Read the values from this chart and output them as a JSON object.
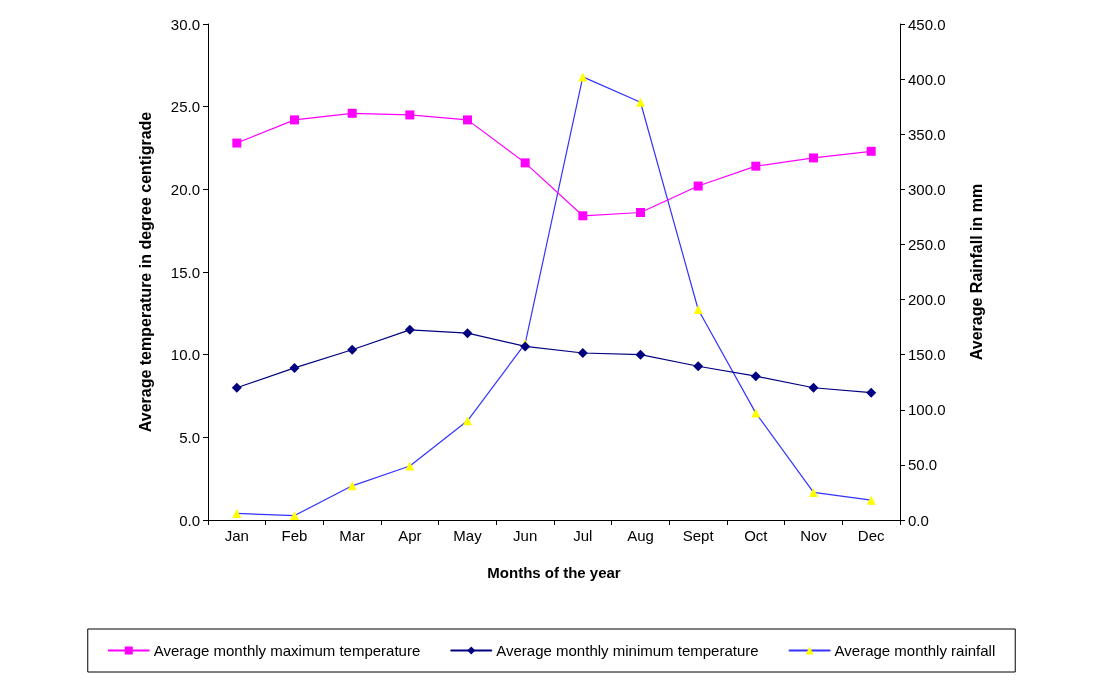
{
  "chart_data": {
    "type": "line",
    "xlabel": "Months of the year",
    "ylabel": "Average temperature in degree centigrade",
    "y2label": "Average Rainfall in mm",
    "categories": [
      "Jan",
      "Feb",
      "Mar",
      "Apr",
      "May",
      "Jun",
      "Jul",
      "Aug",
      "Sept",
      "Oct",
      "Nov",
      "Dec"
    ],
    "series": [
      {
        "name": "Average monthly maximum temperature",
        "color": "#ff00ff",
        "marker": "square",
        "values": [
          22.8,
          24.2,
          24.6,
          24.5,
          24.2,
          21.6,
          18.4,
          18.6,
          20.2,
          21.4,
          21.9,
          22.3
        ]
      },
      {
        "name": "Average monthly minimum temperature",
        "color": "#000080",
        "marker": "diamond",
        "values": [
          8.0,
          9.2,
          10.3,
          11.5,
          11.3,
          10.5,
          10.1,
          10.0,
          9.3,
          8.7,
          8.0,
          7.7
        ]
      },
      {
        "name": "Average monthly rainfall",
        "color": "#3333ff",
        "colors": [
          "#ffff00",
          "#ffff00",
          "#ffff00",
          "#ffff00",
          "#ffff00",
          "#ffff00",
          "#ffff00",
          "#ffff00",
          "#ffff00",
          "#ffff00",
          "#ffff00",
          "#ffff00"
        ],
        "marker": "triangle",
        "axis": "y2",
        "values": [
          6,
          4,
          31,
          49,
          90,
          160,
          402,
          379,
          191,
          97,
          25,
          18
        ]
      }
    ],
    "ylim": [
      0,
      30
    ],
    "yticks": [
      {
        "value": 0,
        "label": "0.0"
      },
      {
        "value": 5,
        "label": "5.0"
      },
      {
        "value": 10,
        "label": "10.0"
      },
      {
        "value": 15,
        "label": "15.0"
      },
      {
        "value": 20,
        "label": "20.0"
      },
      {
        "value": 25,
        "label": "25.0"
      },
      {
        "value": 30,
        "label": "30.0"
      }
    ],
    "y2lim": [
      0,
      450
    ],
    "y2ticks": [
      {
        "value": 0,
        "label": "0.0"
      },
      {
        "value": 50,
        "label": "50.0"
      },
      {
        "value": 100,
        "label": "100.0"
      },
      {
        "value": 150,
        "label": "150.0"
      },
      {
        "value": 200,
        "label": "200.0"
      },
      {
        "value": 250,
        "label": "250.0"
      },
      {
        "value": 300,
        "label": "300.0"
      },
      {
        "value": 350,
        "label": "350.0"
      },
      {
        "value": 400,
        "label": "400.0"
      },
      {
        "value": 450,
        "label": "450.0"
      }
    ],
    "grid": false,
    "legend": "bottom"
  }
}
